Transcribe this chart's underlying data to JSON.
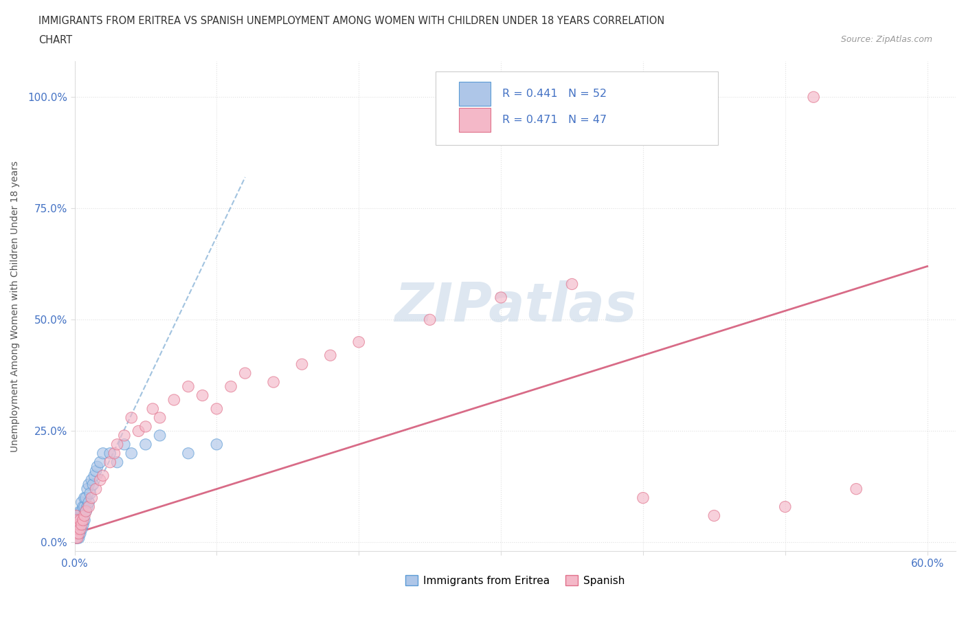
{
  "title_line1": "IMMIGRANTS FROM ERITREA VS SPANISH UNEMPLOYMENT AMONG WOMEN WITH CHILDREN UNDER 18 YEARS CORRELATION",
  "title_line2": "CHART",
  "source_text": "Source: ZipAtlas.com",
  "ylabel": "Unemployment Among Women with Children Under 18 years",
  "xlim": [
    0.0,
    0.62
  ],
  "ylim": [
    -0.02,
    1.08
  ],
  "xtick_positions": [
    0.0,
    0.1,
    0.2,
    0.3,
    0.4,
    0.5,
    0.6
  ],
  "xticklabels": [
    "0.0%",
    "",
    "",
    "",
    "",
    "",
    "60.0%"
  ],
  "ytick_positions": [
    0.0,
    0.25,
    0.5,
    0.75,
    1.0
  ],
  "yticklabels": [
    "0.0%",
    "25.0%",
    "50.0%",
    "75.0%",
    "100.0%"
  ],
  "legend_r1": "R = 0.441",
  "legend_n1": "N = 52",
  "legend_r2": "R = 0.471",
  "legend_n2": "N = 47",
  "color_eritrea_fill": "#aec6e8",
  "color_eritrea_edge": "#5b9bd5",
  "color_spanish_fill": "#f4b8c8",
  "color_spanish_edge": "#e0708a",
  "color_trendline_eritrea": "#8ab4d8",
  "color_trendline_spanish": "#d45b7a",
  "watermark": "ZIPatlas",
  "watermark_color": "#c8d8e8",
  "background_color": "#ffffff",
  "grid_color": "#dddddd",
  "tick_color": "#4472c4",
  "title_color": "#333333",
  "source_color": "#999999",
  "ylabel_color": "#555555",
  "legend_text_color": "#4472c4",
  "eritrea_x": [
    0.001,
    0.001,
    0.001,
    0.001,
    0.001,
    0.002,
    0.002,
    0.002,
    0.002,
    0.002,
    0.002,
    0.003,
    0.003,
    0.003,
    0.003,
    0.003,
    0.004,
    0.004,
    0.004,
    0.004,
    0.005,
    0.005,
    0.005,
    0.005,
    0.006,
    0.006,
    0.006,
    0.007,
    0.007,
    0.007,
    0.008,
    0.008,
    0.009,
    0.009,
    0.01,
    0.01,
    0.011,
    0.012,
    0.013,
    0.014,
    0.015,
    0.016,
    0.018,
    0.02,
    0.025,
    0.03,
    0.035,
    0.04,
    0.05,
    0.06,
    0.08,
    0.1
  ],
  "eritrea_y": [
    0.01,
    0.02,
    0.03,
    0.04,
    0.05,
    0.01,
    0.02,
    0.03,
    0.04,
    0.05,
    0.06,
    0.01,
    0.02,
    0.03,
    0.05,
    0.06,
    0.02,
    0.04,
    0.05,
    0.07,
    0.03,
    0.05,
    0.07,
    0.09,
    0.04,
    0.06,
    0.08,
    0.05,
    0.08,
    0.1,
    0.07,
    0.1,
    0.08,
    0.12,
    0.09,
    0.13,
    0.11,
    0.14,
    0.13,
    0.15,
    0.16,
    0.17,
    0.18,
    0.2,
    0.2,
    0.18,
    0.22,
    0.2,
    0.22,
    0.24,
    0.2,
    0.22
  ],
  "spanish_x": [
    0.001,
    0.001,
    0.001,
    0.001,
    0.002,
    0.002,
    0.002,
    0.003,
    0.003,
    0.004,
    0.004,
    0.005,
    0.006,
    0.007,
    0.008,
    0.01,
    0.012,
    0.015,
    0.018,
    0.02,
    0.025,
    0.028,
    0.03,
    0.035,
    0.04,
    0.045,
    0.05,
    0.055,
    0.06,
    0.07,
    0.08,
    0.09,
    0.1,
    0.11,
    0.12,
    0.14,
    0.16,
    0.18,
    0.2,
    0.25,
    0.3,
    0.35,
    0.4,
    0.45,
    0.5,
    0.55,
    0.52
  ],
  "spanish_y": [
    0.01,
    0.02,
    0.04,
    0.06,
    0.01,
    0.03,
    0.05,
    0.02,
    0.04,
    0.03,
    0.05,
    0.04,
    0.05,
    0.06,
    0.07,
    0.08,
    0.1,
    0.12,
    0.14,
    0.15,
    0.18,
    0.2,
    0.22,
    0.24,
    0.28,
    0.25,
    0.26,
    0.3,
    0.28,
    0.32,
    0.35,
    0.33,
    0.3,
    0.35,
    0.38,
    0.36,
    0.4,
    0.42,
    0.45,
    0.5,
    0.55,
    0.58,
    0.1,
    0.06,
    0.08,
    0.12,
    1.0
  ],
  "trendline_eritrea_x0": 0.0,
  "trendline_eritrea_x1": 0.12,
  "trendline_spanish_x0": 0.0,
  "trendline_spanish_x1": 0.6
}
